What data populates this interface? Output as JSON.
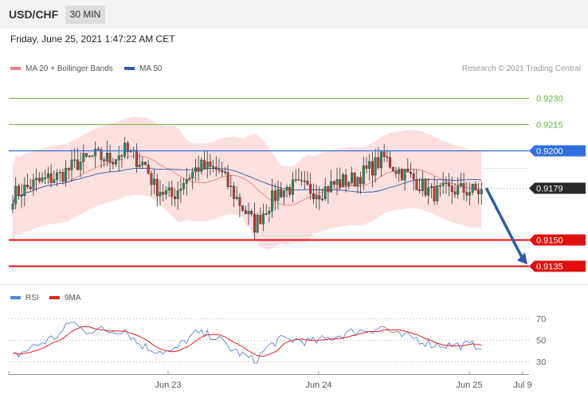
{
  "header": {
    "symbol": "USD/CHF",
    "timeframe": "30 MIN"
  },
  "datetime": "Friday, June 25, 2021 1:47:22 AM CET",
  "legend": {
    "ma20": {
      "label": "MA 20 + Bollinger Bands",
      "color": "#f08080"
    },
    "ma50": {
      "label": "MA 50",
      "color": "#2f5aa8"
    }
  },
  "copyright": "Research © 2021 Trading Central",
  "rsi_legend": {
    "rsi": {
      "label": "RSI",
      "color": "#5b84d6"
    },
    "ma9": {
      "label": "9MA",
      "color": "#e02020"
    }
  },
  "chart_data": {
    "type": "candlestick",
    "instrument": "USD/CHF",
    "interval": "30 MIN",
    "ylim": [
      0.9127,
      0.9242
    ],
    "x_ticks": [
      "Jun 23",
      "Jun 24",
      "Jun 25",
      "Jul 9"
    ],
    "levels": [
      {
        "value": 0.923,
        "label": "0.9230",
        "color": "#6db33f",
        "style": "thin"
      },
      {
        "value": 0.9215,
        "label": "0.9215",
        "color": "#6db33f",
        "style": "thin"
      },
      {
        "value": 0.92,
        "label": "0.9200",
        "color": "#2f6fde",
        "style": "blue"
      },
      {
        "value": 0.9179,
        "label": "0.9179",
        "color": "#2a2a2a",
        "style": "current"
      },
      {
        "value": 0.915,
        "label": "0.9150",
        "color": "#e01010",
        "style": "red"
      },
      {
        "value": 0.9135,
        "label": "0.9135",
        "color": "#e01010",
        "style": "red"
      }
    ],
    "arrow": {
      "from": 0.9179,
      "to": 0.9135
    },
    "price_path": [
      [
        0,
        0.9175
      ],
      [
        8,
        0.9182
      ],
      [
        16,
        0.9186
      ],
      [
        22,
        0.9193
      ],
      [
        28,
        0.9197
      ],
      [
        33,
        0.9195
      ],
      [
        38,
        0.92
      ],
      [
        45,
        0.9192
      ],
      [
        48,
        0.918
      ],
      [
        54,
        0.9174
      ],
      [
        58,
        0.9183
      ],
      [
        63,
        0.9191
      ],
      [
        70,
        0.9189
      ],
      [
        74,
        0.9178
      ],
      [
        78,
        0.9168
      ],
      [
        82,
        0.9158
      ],
      [
        86,
        0.9168
      ],
      [
        90,
        0.9177
      ],
      [
        96,
        0.918
      ],
      [
        104,
        0.9177
      ],
      [
        110,
        0.9182
      ],
      [
        116,
        0.9184
      ],
      [
        122,
        0.9191
      ],
      [
        126,
        0.9196
      ],
      [
        130,
        0.919
      ],
      [
        136,
        0.9184
      ],
      [
        142,
        0.9176
      ],
      [
        150,
        0.9178
      ],
      [
        159,
        0.9177
      ]
    ],
    "rsi": {
      "ylim": [
        25,
        75
      ],
      "ticks": [
        70,
        50,
        30
      ],
      "rsi_path": [
        [
          0,
          34
        ],
        [
          8,
          45
        ],
        [
          16,
          55
        ],
        [
          20,
          68
        ],
        [
          24,
          58
        ],
        [
          28,
          60
        ],
        [
          33,
          58
        ],
        [
          38,
          60
        ],
        [
          42,
          48
        ],
        [
          46,
          42
        ],
        [
          50,
          40
        ],
        [
          54,
          38
        ],
        [
          58,
          48
        ],
        [
          62,
          56
        ],
        [
          68,
          54
        ],
        [
          74,
          42
        ],
        [
          78,
          36
        ],
        [
          82,
          30
        ],
        [
          86,
          42
        ],
        [
          90,
          50
        ],
        [
          96,
          50
        ],
        [
          102,
          48
        ],
        [
          108,
          52
        ],
        [
          116,
          58
        ],
        [
          122,
          60
        ],
        [
          126,
          62
        ],
        [
          130,
          54
        ],
        [
          136,
          52
        ],
        [
          142,
          46
        ],
        [
          150,
          45
        ],
        [
          159,
          45
        ]
      ]
    }
  }
}
